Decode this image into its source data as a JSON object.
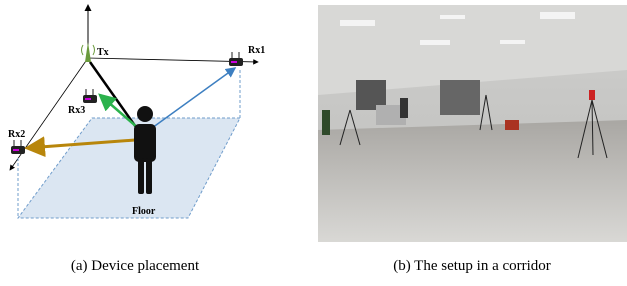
{
  "figure": {
    "diagram": {
      "tx": "Tx",
      "rx1": "Rx1",
      "rx2": "Rx2",
      "rx3": "Rx3",
      "floor": "Floor"
    },
    "captions": [
      "(a) Device placement",
      "(b) The setup in a corridor"
    ]
  }
}
